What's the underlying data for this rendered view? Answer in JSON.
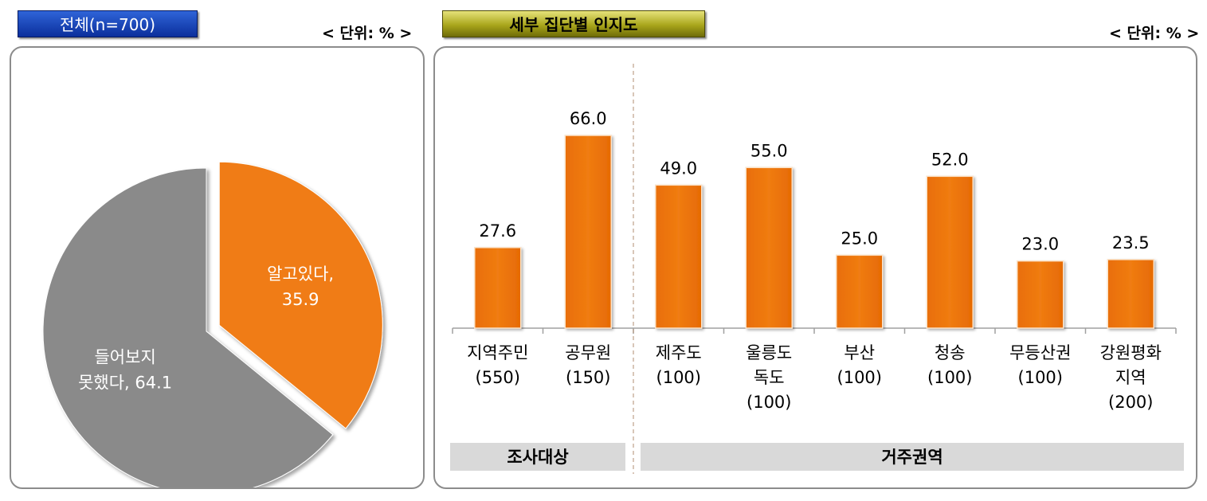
{
  "left": {
    "title": "전체(n=700)",
    "unit": "< 단위: % >"
  },
  "right": {
    "title": "세부 집단별 인지도",
    "unit": "< 단위: % >"
  },
  "chart_data": [
    {
      "type": "pie",
      "title": "전체(n=700)",
      "slices": [
        {
          "label_lines": [
            "알고있다,",
            "35.9"
          ],
          "value": 35.9,
          "color": "#f07c12",
          "exploded": true
        },
        {
          "label_lines": [
            "들어보지",
            "못했다, 64.1"
          ],
          "value": 64.1,
          "color": "#8a8a8a",
          "exploded": false
        }
      ]
    },
    {
      "type": "bar",
      "title": "세부 집단별 인지도",
      "unit": "< 단위: % >",
      "categories": [
        [
          "지역주민",
          "(550)"
        ],
        [
          "공무원",
          "(150)"
        ],
        [
          "제주도",
          "(100)"
        ],
        [
          "울릉도",
          "독도",
          "(100)"
        ],
        [
          "부산",
          "(100)"
        ],
        [
          "청송",
          "(100)"
        ],
        [
          "무등산권",
          "(100)"
        ],
        [
          "강원평화",
          "지역",
          "(200)"
        ]
      ],
      "values": [
        27.6,
        66.0,
        49.0,
        55.0,
        25.0,
        52.0,
        23.0,
        23.5
      ],
      "value_labels": [
        "27.6",
        "66.0",
        "49.0",
        "55.0",
        "25.0",
        "52.0",
        "23.0",
        "23.5"
      ],
      "ylim": [
        0,
        75
      ],
      "bar_color": "#f07c12",
      "groups": [
        {
          "label": "조사대상",
          "from": 0,
          "to": 1
        },
        {
          "label": "거주권역",
          "from": 2,
          "to": 7
        }
      ]
    }
  ]
}
